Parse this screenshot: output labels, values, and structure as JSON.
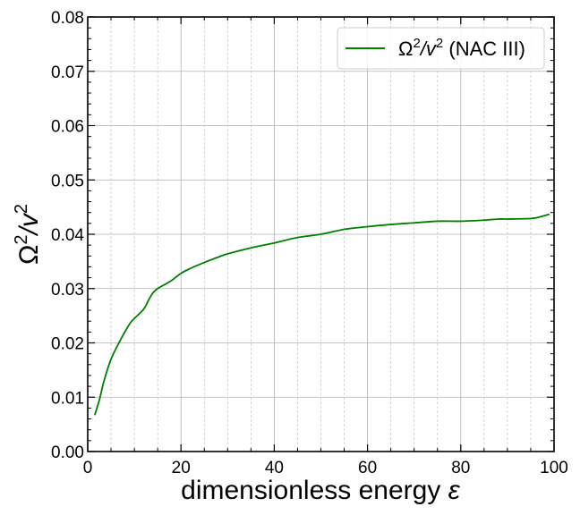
{
  "chart_data": {
    "type": "line",
    "xlabel": "dimensionless energy",
    "xlabel_symbol": "ε",
    "ylabel_base": "Ω",
    "ylabel_mid": "/v",
    "ylabel_exp": "2",
    "xlim": [
      0,
      100
    ],
    "ylim": [
      0,
      0.08
    ],
    "xticks": [
      0,
      20,
      40,
      60,
      80,
      100
    ],
    "yticks": [
      0.0,
      0.01,
      0.02,
      0.03,
      0.04,
      0.05,
      0.06,
      0.07,
      0.08
    ],
    "x_tick_labels": [
      "0",
      "20",
      "40",
      "60",
      "80",
      "100"
    ],
    "y_tick_labels": [
      "0.00",
      "0.01",
      "0.02",
      "0.03",
      "0.04",
      "0.05",
      "0.06",
      "0.07",
      "0.08"
    ],
    "x_minor_step": 5,
    "y_minor_step": 0.002,
    "grid": true,
    "legend": "top-right",
    "legend_label": {
      "base": "Ω",
      "exp1": "2",
      "mid": "/v",
      "exp2": "2",
      "suffix": " (NAC III)"
    },
    "series": [
      {
        "color": "#007f00",
        "x": [
          1.5,
          2.5,
          3.5,
          5,
          7,
          9,
          10,
          12,
          13,
          14,
          15,
          16,
          18,
          20,
          22,
          25,
          28,
          30,
          35,
          40,
          45,
          50,
          55,
          60,
          65,
          70,
          75,
          80,
          85,
          88,
          90,
          95,
          97,
          99
        ],
        "y": [
          0.0067,
          0.0095,
          0.013,
          0.017,
          0.0205,
          0.0235,
          0.0245,
          0.0262,
          0.0278,
          0.0292,
          0.03,
          0.0305,
          0.0315,
          0.0328,
          0.0337,
          0.0348,
          0.0358,
          0.0364,
          0.0375,
          0.0384,
          0.0394,
          0.04,
          0.0409,
          0.0414,
          0.0418,
          0.0421,
          0.0424,
          0.0424,
          0.0426,
          0.0428,
          0.0428,
          0.0429,
          0.0432,
          0.0437
        ]
      }
    ]
  }
}
